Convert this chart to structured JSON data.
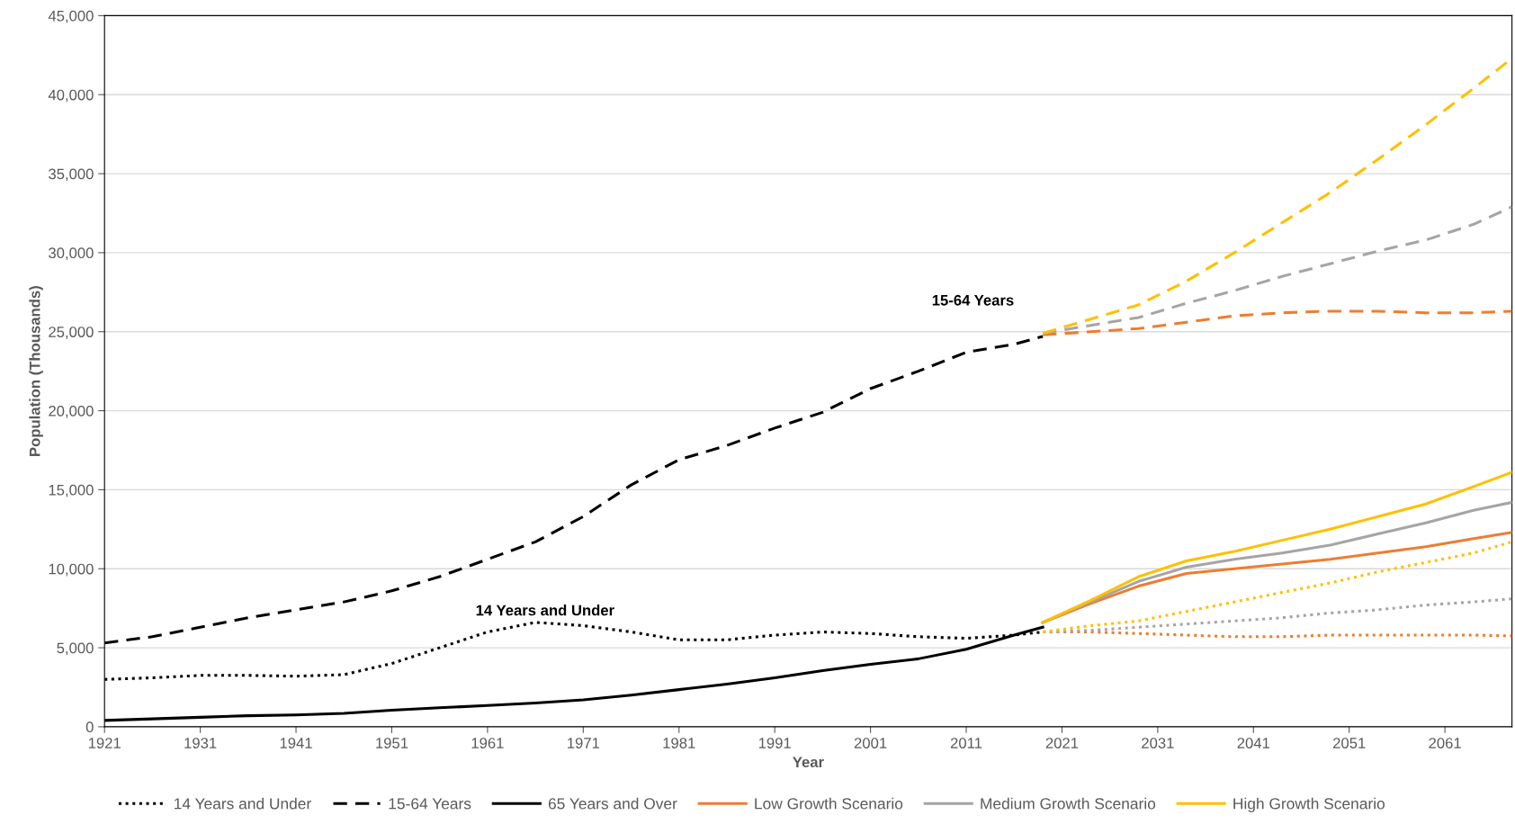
{
  "chart_data": {
    "type": "line",
    "xlabel": "Year",
    "ylabel": "Population (Thousands)",
    "xlim": [
      1921,
      2068
    ],
    "xticks": [
      1921,
      1931,
      1941,
      1951,
      1961,
      1971,
      1981,
      1991,
      2001,
      2011,
      2021,
      2031,
      2041,
      2051,
      2061
    ],
    "ylim": [
      0,
      45000
    ],
    "yticks": [
      0,
      {
        "value": 5000,
        "label": "5,000"
      },
      {
        "value": 10000,
        "label": "10,000"
      },
      {
        "value": 15000,
        "label": "15,000"
      },
      {
        "value": 20000,
        "label": "20,000"
      },
      {
        "value": 25000,
        "label": "25,000"
      },
      {
        "value": 30000,
        "label": "30,000"
      },
      {
        "value": 35000,
        "label": "35,000"
      },
      {
        "value": 40000,
        "label": "40,000"
      },
      {
        "value": 45000,
        "label": "45,000"
      }
    ],
    "grid": "y",
    "legend": "bottom",
    "marker": "none",
    "annotations": [
      "15-64 Years",
      "14 Years and Under"
    ],
    "series": [
      {
        "name": "14 Years and Under",
        "color": "#000000",
        "line_style": "dotted",
        "x": [
          1921,
          1926,
          1931,
          1936,
          1941,
          1946,
          1951,
          1956,
          1961,
          1966,
          1971,
          1976,
          1981,
          1986,
          1991,
          1996,
          2001,
          2006,
          2011,
          2016,
          2019
        ],
        "values": [
          3000,
          3100,
          3250,
          3250,
          3200,
          3300,
          4000,
          5000,
          6000,
          6600,
          6400,
          6000,
          5500,
          5500,
          5800,
          6000,
          5900,
          5700,
          5600,
          5800,
          6000
        ]
      },
      {
        "name": "15-64 Years",
        "color": "#000000",
        "line_style": "dashed",
        "x": [
          1921,
          1926,
          1931,
          1936,
          1941,
          1946,
          1951,
          1956,
          1961,
          1966,
          1971,
          1976,
          1981,
          1986,
          1991,
          1996,
          2001,
          2006,
          2011,
          2016,
          2019
        ],
        "values": [
          5300,
          5700,
          6300,
          6900,
          7400,
          7900,
          8600,
          9500,
          10600,
          11700,
          13300,
          15300,
          16900,
          17800,
          18900,
          19900,
          21400,
          22500,
          23700,
          24200,
          24700
        ]
      },
      {
        "name": "65 Years and Over",
        "color": "#000000",
        "line_style": "solid",
        "x": [
          1921,
          1926,
          1931,
          1936,
          1941,
          1946,
          1951,
          1956,
          1961,
          1966,
          1971,
          1976,
          1981,
          1986,
          1991,
          1996,
          2001,
          2006,
          2011,
          2016,
          2019
        ],
        "values": [
          400,
          500,
          600,
          700,
          750,
          850,
          1050,
          1200,
          1350,
          1500,
          1700,
          2000,
          2350,
          2700,
          3100,
          3550,
          3950,
          4300,
          4900,
          5800,
          6300
        ]
      },
      {
        "name": "Low Growth Scenario",
        "color": "#ed7d31",
        "line_style": "solid",
        "x": [
          2019,
          2024,
          2029,
          2034,
          2039,
          2044,
          2049,
          2054,
          2059,
          2064,
          2068
        ],
        "values": [
          6600,
          7800,
          8900,
          9700,
          10000,
          10300,
          10600,
          11000,
          11400,
          11900,
          12300
        ]
      },
      {
        "name": "Medium Growth Scenario",
        "color": "#a5a5a5",
        "line_style": "solid",
        "x": [
          2019,
          2024,
          2029,
          2034,
          2039,
          2044,
          2049,
          2054,
          2059,
          2064,
          2068
        ],
        "values": [
          6600,
          7900,
          9200,
          10100,
          10600,
          11000,
          11500,
          12200,
          12900,
          13700,
          14200
        ]
      },
      {
        "name": "High Growth Scenario",
        "color": "#ffc000",
        "line_style": "solid",
        "x": [
          2019,
          2024,
          2029,
          2034,
          2039,
          2044,
          2049,
          2054,
          2059,
          2064,
          2068
        ],
        "values": [
          6600,
          8000,
          9500,
          10500,
          11100,
          11800,
          12500,
          13300,
          14100,
          15200,
          16100
        ]
      },
      {
        "color": "#ed7d31",
        "line_style": "dashed",
        "x": [
          2019,
          2024,
          2029,
          2034,
          2039,
          2044,
          2049,
          2054,
          2059,
          2064,
          2068
        ],
        "values": [
          24800,
          25000,
          25200,
          25600,
          26000,
          26200,
          26300,
          26300,
          26200,
          26200,
          26300
        ]
      },
      {
        "color": "#a5a5a5",
        "line_style": "dashed",
        "x": [
          2019,
          2024,
          2029,
          2034,
          2039,
          2044,
          2049,
          2054,
          2059,
          2064,
          2068
        ],
        "values": [
          24900,
          25400,
          25900,
          26800,
          27600,
          28500,
          29300,
          30100,
          30800,
          31800,
          32900
        ]
      },
      {
        "color": "#ffc000",
        "line_style": "dashed",
        "x": [
          2019,
          2024,
          2029,
          2034,
          2039,
          2044,
          2049,
          2054,
          2059,
          2064,
          2068
        ],
        "values": [
          24900,
          25800,
          26700,
          28200,
          30000,
          31900,
          33800,
          35900,
          38100,
          40400,
          42300
        ]
      },
      {
        "color": "#ed7d31",
        "line_style": "dotted",
        "x": [
          2019,
          2024,
          2029,
          2034,
          2039,
          2044,
          2049,
          2054,
          2059,
          2064,
          2068
        ],
        "values": [
          6000,
          6000,
          5900,
          5800,
          5700,
          5700,
          5800,
          5800,
          5800,
          5800,
          5750
        ]
      },
      {
        "color": "#a5a5a5",
        "line_style": "dotted",
        "x": [
          2019,
          2024,
          2029,
          2034,
          2039,
          2044,
          2049,
          2054,
          2059,
          2064,
          2068
        ],
        "values": [
          6000,
          6100,
          6300,
          6500,
          6700,
          6900,
          7200,
          7400,
          7700,
          7900,
          8100
        ]
      },
      {
        "color": "#ffc000",
        "line_style": "dotted",
        "x": [
          2019,
          2024,
          2029,
          2034,
          2039,
          2044,
          2049,
          2054,
          2059,
          2064,
          2068
        ],
        "values": [
          6000,
          6400,
          6700,
          7300,
          7900,
          8500,
          9100,
          9800,
          10400,
          11000,
          11700
        ]
      }
    ]
  }
}
